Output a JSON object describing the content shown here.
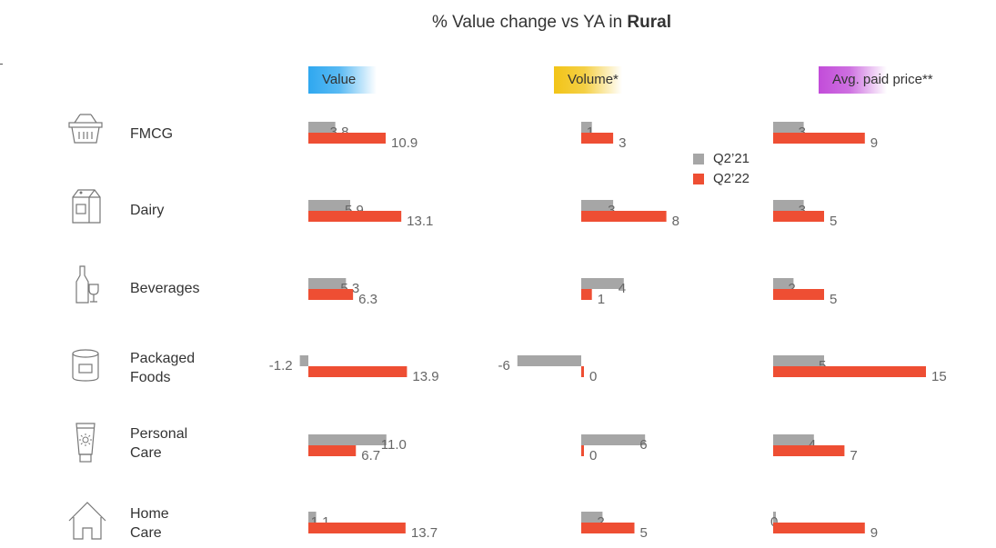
{
  "title": {
    "prefix": "% Value change vs YA in ",
    "emphasis": "Rural"
  },
  "headers": [
    {
      "label": "Value",
      "color": "#2FA8F0"
    },
    {
      "label": "Volume*",
      "color": "#F2C417"
    },
    {
      "label": "Avg. paid price**",
      "color": "#C24CD9"
    }
  ],
  "legend": [
    {
      "label": "Q2’21",
      "color": "#A6A6A6"
    },
    {
      "label": "Q2’22",
      "color": "#EE4E33"
    }
  ],
  "categories": [
    {
      "line1": "FMCG",
      "line2": "",
      "icon": "basket-icon"
    },
    {
      "line1": "Dairy",
      "line2": "",
      "icon": "milk-carton-icon"
    },
    {
      "line1": "Beverages",
      "line2": "",
      "icon": "bottle-glass-icon"
    },
    {
      "line1": "Packaged",
      "line2": "Foods",
      "icon": "tin-can-icon"
    },
    {
      "line1": "Personal",
      "line2": "Care",
      "icon": "cream-tube-icon"
    },
    {
      "line1": "Home",
      "line2": "Care",
      "icon": "house-icon"
    }
  ],
  "chart_data": {
    "type": "bar",
    "title": "% Value change vs YA in Rural",
    "categories": [
      "FMCG",
      "Dairy",
      "Beverages",
      "Packaged Foods",
      "Personal Care",
      "Home Care"
    ],
    "panels": [
      {
        "name": "Value",
        "series": [
          {
            "name": "Q2’21",
            "values": [
              3.8,
              5.9,
              5.3,
              -1.2,
              11.0,
              1.1
            ],
            "labels": [
              "3.8",
              "5.9",
              "5.3",
              "-1.2",
              "11.0",
              "1.1"
            ]
          },
          {
            "name": "Q2’22",
            "values": [
              10.9,
              13.1,
              6.3,
              13.9,
              6.7,
              13.7
            ],
            "labels": [
              "10.9",
              "13.1",
              "6.3",
              "13.9",
              "6.7",
              "13.7"
            ]
          }
        ]
      },
      {
        "name": "Volume*",
        "series": [
          {
            "name": "Q2’21",
            "values": [
              1,
              3,
              4,
              -6,
              6,
              2
            ],
            "labels": [
              "1",
              "3",
              "4",
              "-6",
              "6",
              "2"
            ]
          },
          {
            "name": "Q2’22",
            "values": [
              3,
              8,
              1,
              0,
              0,
              5
            ],
            "labels": [
              "3",
              "8",
              "1",
              "0",
              "0",
              "5"
            ]
          }
        ]
      },
      {
        "name": "Avg. paid price**",
        "series": [
          {
            "name": "Q2’21",
            "values": [
              3,
              3,
              2,
              5,
              4,
              0
            ],
            "labels": [
              "3",
              "3",
              "2",
              "5",
              "4",
              "0"
            ]
          },
          {
            "name": "Q2’22",
            "values": [
              9,
              5,
              5,
              15,
              7,
              9
            ],
            "labels": [
              "9",
              "5",
              "5",
              "15",
              "7",
              "9"
            ]
          }
        ]
      }
    ]
  }
}
